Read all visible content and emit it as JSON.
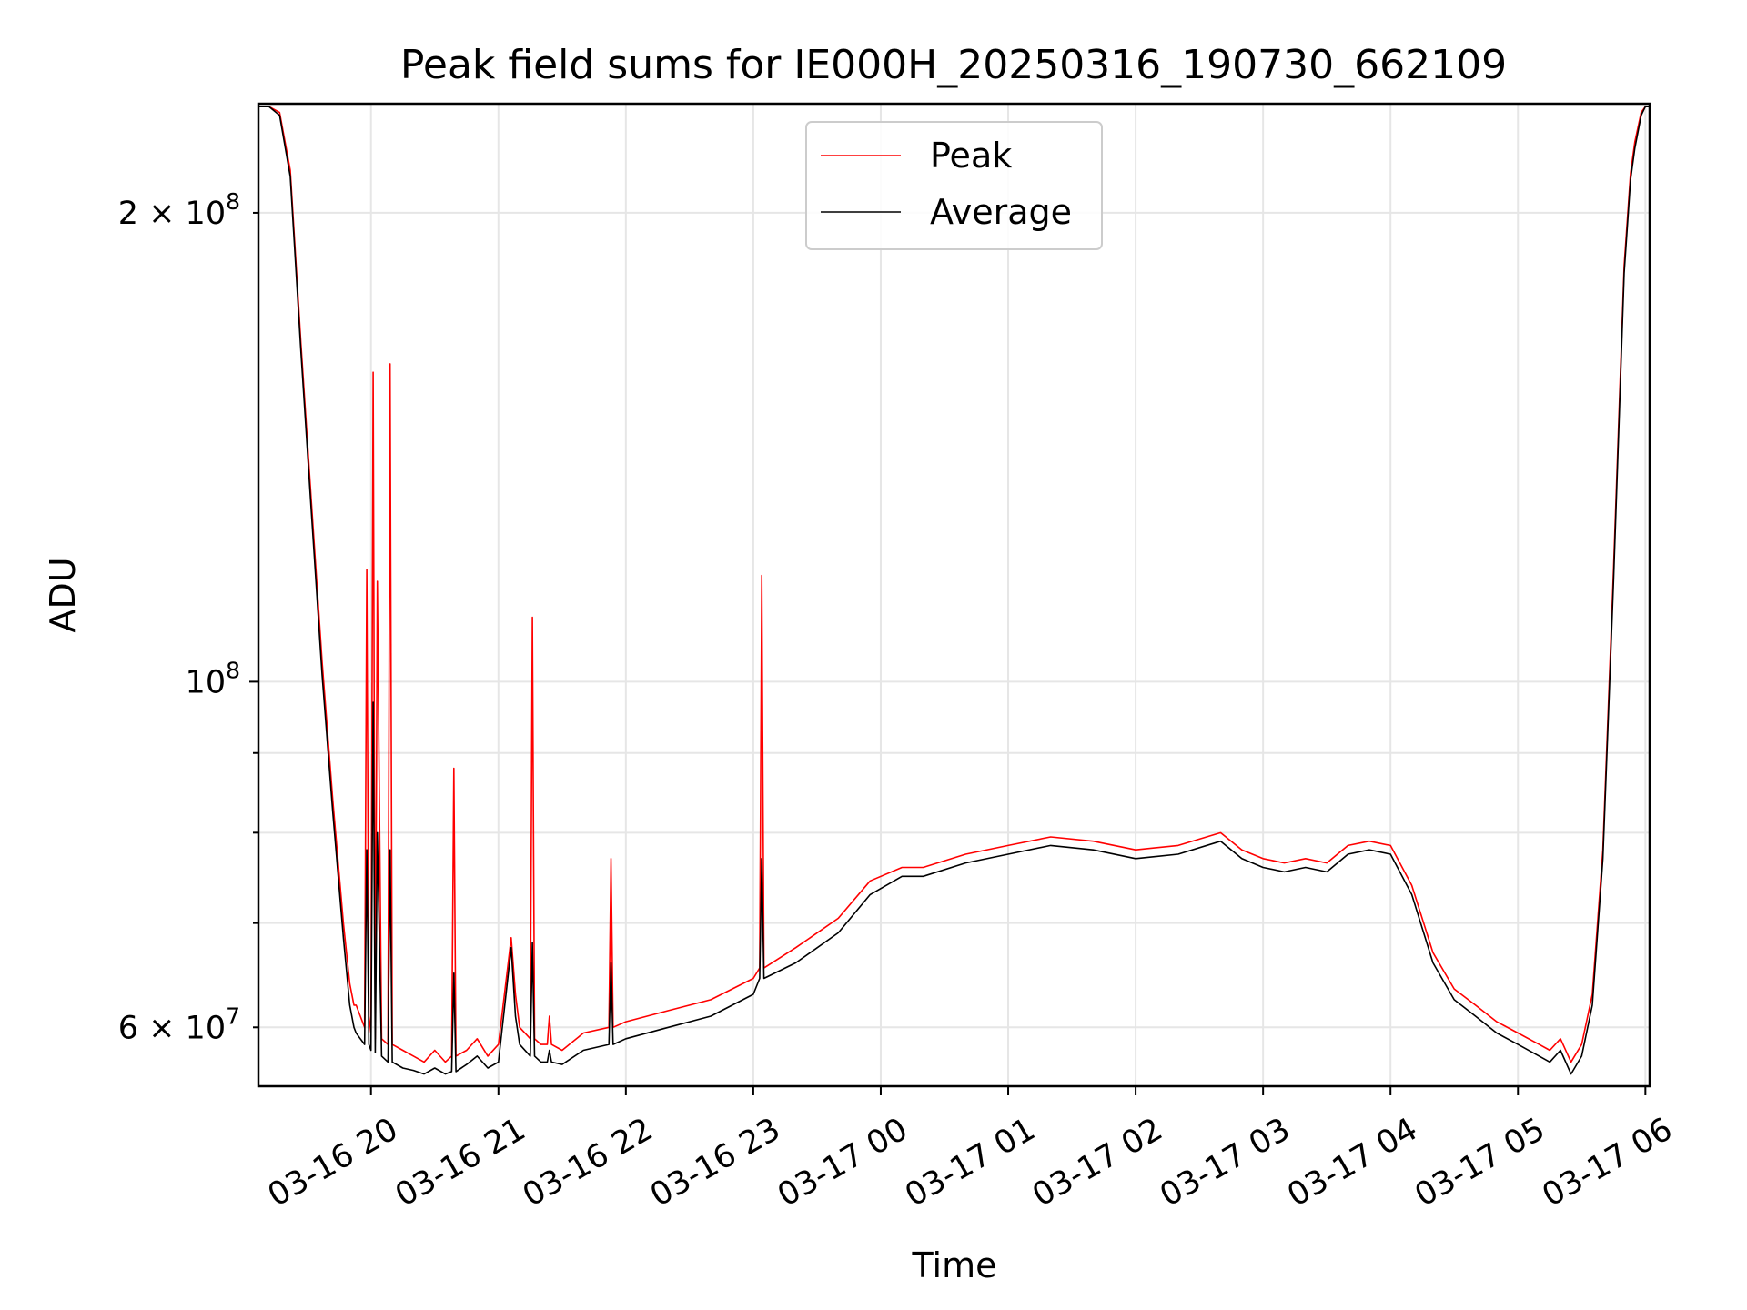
{
  "chart_data": {
    "type": "line",
    "title": "Peak field sums for IE000H_20250316_190730_662109",
    "xlabel": "Time",
    "ylabel": "ADU",
    "yscale": "log",
    "ylim": [
      55000000,
      235000000
    ],
    "xlim": [
      "03-16 19:07",
      "03-17 06:02"
    ],
    "grid": true,
    "legend": "upper center",
    "x_tick_labels": [
      "03-16 20",
      "03-16 21",
      "03-16 22",
      "03-16 23",
      "03-17 00",
      "03-17 01",
      "03-17 02",
      "03-17 03",
      "03-17 04",
      "03-17 05",
      "03-17 06"
    ],
    "y_tick_labels": [
      {
        "value": 60000000,
        "base": "6 × 10",
        "exp": "7"
      },
      {
        "value": 100000000,
        "base": "10",
        "exp": "8"
      },
      {
        "value": 200000000,
        "base": "2 × 10",
        "exp": "8"
      }
    ],
    "series": [
      {
        "name": "Peak",
        "color": "#ff0000",
        "x": [
          "03-16 19:07",
          "03-16 19:12",
          "03-16 19:17",
          "03-16 19:22",
          "03-16 19:27",
          "03-16 19:32",
          "03-16 19:37",
          "03-16 19:42",
          "03-16 19:47",
          "03-16 19:50",
          "03-16 19:52",
          "03-16 19:53",
          "03-16 19:55",
          "03-16 19:57",
          "03-16 19:58",
          "03-16 19:59",
          "03-16 20:00",
          "03-16 20:01",
          "03-16 20:02",
          "03-16 20:03",
          "03-16 20:05",
          "03-16 20:08",
          "03-16 20:09",
          "03-16 20:10",
          "03-16 20:15",
          "03-16 20:20",
          "03-16 20:25",
          "03-16 20:30",
          "03-16 20:35",
          "03-16 20:38",
          "03-16 20:39",
          "03-16 20:40",
          "03-16 20:45",
          "03-16 20:50",
          "03-16 20:55",
          "03-16 21:00",
          "03-16 21:06",
          "03-16 21:08",
          "03-16 21:10",
          "03-16 21:15",
          "03-16 21:16",
          "03-16 21:17",
          "03-16 21:20",
          "03-16 21:23",
          "03-16 21:24",
          "03-16 21:25",
          "03-16 21:30",
          "03-16 21:40",
          "03-16 21:52",
          "03-16 21:53",
          "03-16 21:54",
          "03-16 22:00",
          "03-16 22:20",
          "03-16 22:40",
          "03-16 23:00",
          "03-16 23:03",
          "03-16 23:04",
          "03-16 23:05",
          "03-16 23:20",
          "03-16 23:40",
          "03-16 23:55",
          "03-17 00:10",
          "03-17 00:20",
          "03-17 00:40",
          "03-17 01:00",
          "03-17 01:20",
          "03-17 01:40",
          "03-17 02:00",
          "03-17 02:20",
          "03-17 02:40",
          "03-17 02:50",
          "03-17 03:00",
          "03-17 03:10",
          "03-17 03:20",
          "03-17 03:30",
          "03-17 03:40",
          "03-17 03:50",
          "03-17 04:00",
          "03-17 04:10",
          "03-17 04:20",
          "03-17 04:30",
          "03-17 04:40",
          "03-17 04:50",
          "03-17 05:00",
          "03-17 05:10",
          "03-17 05:15",
          "03-17 05:20",
          "03-17 05:25",
          "03-17 05:30",
          "03-17 05:35",
          "03-17 05:40",
          "03-17 05:45",
          "03-17 05:50",
          "03-17 05:53",
          "03-17 05:55",
          "03-17 05:58",
          "03-17 06:00",
          "03-17 06:02"
        ],
        "values": [
          234000000,
          234000000,
          232000000,
          213000000,
          165000000,
          130000000,
          103000000,
          84000000,
          70000000,
          64000000,
          62000000,
          62000000,
          61000000,
          60000000,
          118000000,
          61000000,
          59500000,
          158000000,
          59000000,
          116000000,
          59000000,
          58500000,
          160000000,
          58500000,
          58000000,
          57500000,
          57000000,
          58000000,
          57000000,
          57500000,
          88000000,
          57500000,
          58000000,
          59000000,
          57500000,
          58500000,
          68500000,
          63000000,
          60000000,
          59000000,
          110000000,
          59000000,
          58500000,
          58500000,
          61000000,
          58500000,
          58000000,
          59500000,
          60000000,
          77000000,
          60000000,
          60500000,
          61500000,
          62500000,
          64500000,
          65500000,
          117000000,
          65500000,
          67500000,
          70500000,
          74500000,
          76000000,
          76000000,
          77500000,
          78500000,
          79500000,
          79000000,
          78000000,
          78500000,
          80000000,
          78000000,
          77000000,
          76500000,
          77000000,
          76500000,
          78500000,
          79000000,
          78500000,
          74000000,
          67000000,
          63500000,
          62000000,
          60500000,
          59500000,
          58500000,
          58000000,
          59000000,
          57000000,
          58500000,
          63000000,
          78000000,
          118000000,
          185000000,
          212000000,
          222000000,
          232000000,
          234000000,
          234000000
        ]
      },
      {
        "name": "Average",
        "color": "#000000",
        "x": [
          "03-16 19:07",
          "03-16 19:12",
          "03-16 19:17",
          "03-16 19:22",
          "03-16 19:27",
          "03-16 19:32",
          "03-16 19:37",
          "03-16 19:42",
          "03-16 19:47",
          "03-16 19:50",
          "03-16 19:52",
          "03-16 19:53",
          "03-16 19:55",
          "03-16 19:57",
          "03-16 19:58",
          "03-16 19:59",
          "03-16 20:00",
          "03-16 20:01",
          "03-16 20:02",
          "03-16 20:03",
          "03-16 20:05",
          "03-16 20:08",
          "03-16 20:09",
          "03-16 20:10",
          "03-16 20:15",
          "03-16 20:20",
          "03-16 20:25",
          "03-16 20:30",
          "03-16 20:35",
          "03-16 20:38",
          "03-16 20:39",
          "03-16 20:40",
          "03-16 20:45",
          "03-16 20:50",
          "03-16 20:55",
          "03-16 21:00",
          "03-16 21:06",
          "03-16 21:08",
          "03-16 21:10",
          "03-16 21:15",
          "03-16 21:16",
          "03-16 21:17",
          "03-16 21:20",
          "03-16 21:23",
          "03-16 21:24",
          "03-16 21:25",
          "03-16 21:30",
          "03-16 21:40",
          "03-16 21:52",
          "03-16 21:53",
          "03-16 21:54",
          "03-16 22:00",
          "03-16 22:20",
          "03-16 22:40",
          "03-16 23:00",
          "03-16 23:03",
          "03-16 23:04",
          "03-16 23:05",
          "03-16 23:20",
          "03-16 23:40",
          "03-16 23:55",
          "03-17 00:10",
          "03-17 00:20",
          "03-17 00:40",
          "03-17 01:00",
          "03-17 01:20",
          "03-17 01:40",
          "03-17 02:00",
          "03-17 02:20",
          "03-17 02:40",
          "03-17 02:50",
          "03-17 03:00",
          "03-17 03:10",
          "03-17 03:20",
          "03-17 03:30",
          "03-17 03:40",
          "03-17 03:50",
          "03-17 04:00",
          "03-17 04:10",
          "03-17 04:20",
          "03-17 04:30",
          "03-17 04:40",
          "03-17 04:50",
          "03-17 05:00",
          "03-17 05:10",
          "03-17 05:15",
          "03-17 05:20",
          "03-17 05:25",
          "03-17 05:30",
          "03-17 05:35",
          "03-17 05:40",
          "03-17 05:45",
          "03-17 05:50",
          "03-17 05:53",
          "03-17 05:55",
          "03-17 05:58",
          "03-17 06:00",
          "03-17 06:02"
        ],
        "values": [
          234000000,
          234000000,
          231000000,
          211000000,
          163000000,
          128000000,
          101000000,
          82500000,
          68500000,
          62000000,
          60000000,
          59500000,
          59000000,
          58500000,
          78000000,
          58500000,
          58000000,
          97000000,
          57800000,
          80000000,
          57500000,
          57000000,
          78000000,
          57000000,
          56500000,
          56300000,
          56000000,
          56500000,
          56000000,
          56200000,
          65000000,
          56200000,
          56800000,
          57500000,
          56500000,
          57000000,
          67500000,
          61000000,
          58500000,
          57500000,
          68000000,
          57500000,
          57000000,
          57000000,
          58000000,
          57000000,
          56800000,
          58000000,
          58500000,
          66000000,
          58500000,
          59000000,
          60000000,
          61000000,
          63000000,
          64500000,
          77000000,
          64500000,
          66000000,
          69000000,
          73000000,
          75000000,
          75000000,
          76500000,
          77500000,
          78500000,
          78000000,
          77000000,
          77500000,
          79000000,
          77000000,
          76000000,
          75500000,
          76000000,
          75500000,
          77500000,
          78000000,
          77500000,
          73000000,
          66000000,
          62500000,
          61000000,
          59500000,
          58500000,
          57500000,
          57000000,
          58000000,
          56000000,
          57500000,
          62000000,
          77000000,
          116000000,
          183000000,
          210000000,
          220000000,
          231000000,
          234000000,
          234000000
        ]
      }
    ]
  }
}
